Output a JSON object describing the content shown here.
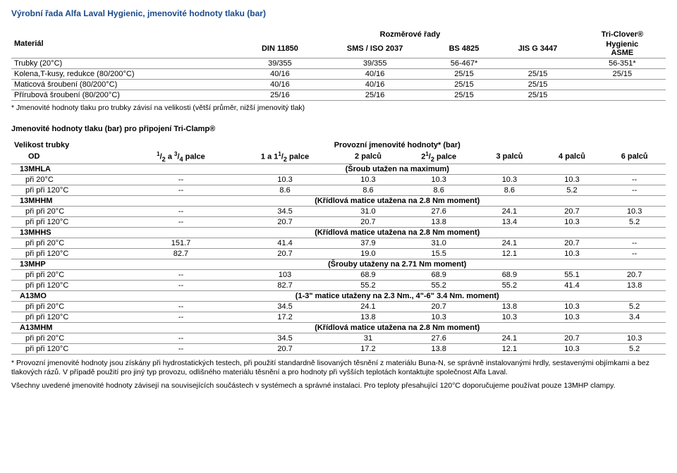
{
  "title": "Výrobní řada Alfa Laval Hygienic, jmenovité hodnoty tlaku (bar)",
  "topTable": {
    "sectionHeader": "Rozměrové řady",
    "colMaterial": "Materiál",
    "cols": [
      "DIN 11850",
      "SMS / ISO 2037",
      "BS 4825",
      "JIS G 3447"
    ],
    "colLast": {
      "l1": "Tri-Clover®",
      "l2": "Hygienic",
      "l3": "ASME"
    },
    "rows": [
      {
        "label": "Trubky (20°C)",
        "c": [
          "39/355",
          "39/355",
          "56-467*",
          "",
          "56-351*"
        ]
      },
      {
        "label": "Kolena,T-kusy, redukce (80/200°C)",
        "c": [
          "40/16",
          "40/16",
          "25/15",
          "25/15",
          "25/15"
        ]
      },
      {
        "label": "Maticová šroubení (80/200°C)",
        "c": [
          "40/16",
          "40/16",
          "25/15",
          "25/15",
          ""
        ]
      },
      {
        "label": "Přírubová šroubení (80/200°C)",
        "c": [
          "25/16",
          "25/16",
          "25/15",
          "25/15",
          ""
        ]
      }
    ],
    "footnote": "* Jmenovité hodnoty tlaku pro trubky závisí na velikosti (větší průměr, nižší jmenovitý tlak)"
  },
  "sub": {
    "title": "Jmenovité hodnoty tlaku (bar) pro připojení Tri-Clamp®",
    "header1": "Provozní jmenovité hodnoty* (bar)",
    "left1": "Velikost trubky",
    "left2": "OD",
    "cols": [
      "1/2 a 3/4 palce",
      "1 a 1 1/2 palce",
      "2 palců",
      "2 1/2 palce",
      "3 palců",
      "4 palců",
      "6 palců"
    ]
  },
  "groups": [
    {
      "name": "13MHLA",
      "note": "(Šroub utažen na maximum)",
      "rows": [
        {
          "l": "při 20°C",
          "v": [
            "--",
            "10.3",
            "10.3",
            "10.3",
            "10.3",
            "10.3",
            "--"
          ]
        },
        {
          "l": "při při 120°C",
          "v": [
            "--",
            "8.6",
            "8.6",
            "8.6",
            "8.6",
            "5.2",
            "--"
          ]
        }
      ]
    },
    {
      "name": "13MHHM",
      "note": "(Křídlová matice utažena na 2.8 Nm moment)",
      "rows": [
        {
          "l": "při při 20°C",
          "v": [
            "--",
            "34.5",
            "31.0",
            "27.6",
            "24.1",
            "20.7",
            "10.3"
          ]
        },
        {
          "l": "při při 120°C",
          "v": [
            "--",
            "20.7",
            "20.7",
            "13.8",
            "13.4",
            "10.3",
            "5.2"
          ]
        }
      ]
    },
    {
      "name": "13MHHS",
      "note": "(Křídlová matice utažena na 2.8 Nm moment)",
      "rows": [
        {
          "l": "při při 20°C",
          "v": [
            "151.7",
            "41.4",
            "37.9",
            "31.0",
            "24.1",
            "20.7",
            "--"
          ]
        },
        {
          "l": "při při 120°C",
          "v": [
            "82.7",
            "20.7",
            "19.0",
            "15.5",
            "12.1",
            "10.3",
            "--"
          ]
        }
      ]
    },
    {
      "name": "13MHP",
      "note": "(Šrouby utaženy na 2.71 Nm moment)",
      "rows": [
        {
          "l": "při při 20°C",
          "v": [
            "--",
            "103",
            "68.9",
            "68.9",
            "68.9",
            "55.1",
            "20.7"
          ]
        },
        {
          "l": "při při 120°C",
          "v": [
            "--",
            "82.7",
            "55.2",
            "55.2",
            "55.2",
            "41.4",
            "13.8"
          ]
        }
      ]
    },
    {
      "name": "A13MO",
      "note": "(1-3\" matice utaženy na 2.3 Nm., 4\"-6\" 3.4 Nm.  moment)",
      "rows": [
        {
          "l": "při při 20°C",
          "v": [
            "--",
            "34.5",
            "24.1",
            "20.7",
            "13.8",
            "10.3",
            "5.2"
          ]
        },
        {
          "l": "při při 120°C",
          "v": [
            "--",
            "17.2",
            "13.8",
            "10.3",
            "10.3",
            "10.3",
            "3.4"
          ]
        }
      ]
    },
    {
      "name": "A13MHM",
      "note": "(Křídlová matice utažena na 2.8 Nm moment)",
      "rows": [
        {
          "l": "při při 20°C",
          "v": [
            "--",
            "34.5",
            "31",
            "27.6",
            "24.1",
            "20.7",
            "10.3"
          ]
        },
        {
          "l": "při při 120°C",
          "v": [
            "--",
            "20.7",
            "17.2",
            "13.8",
            "12.1",
            "10.3",
            "5.2"
          ]
        }
      ]
    }
  ],
  "foot": {
    "p1": "* Provozní jmenovité hodnoty jsou získány při hydrostatických testech, při použití standardně lisovaných těsnění z materiálu Buna-N, se správně instalovanými hrdly, sestavenými objímkami a bez tlakových rázů. V případě použití pro jiný typ provozu, odlišného materiálu těsnění a pro hodnoty při vyšších teplotách kontaktujte společnost Alfa Laval.",
    "p2": "Všechny uvedené jmenovité hodnoty závisejí na souvisejících součástech v systémech a správné instalaci. Pro teploty přesahující 120°C doporučujeme používat pouze 13MHP clampy."
  }
}
